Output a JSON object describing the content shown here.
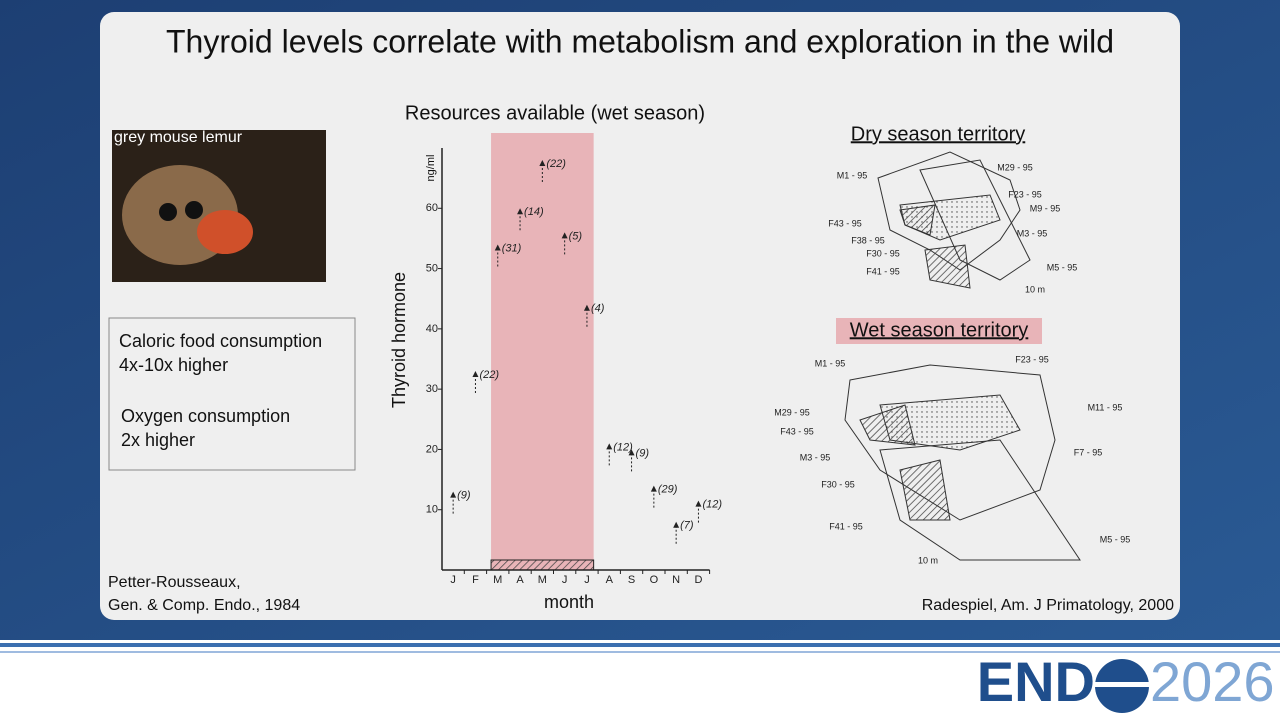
{
  "slide": {
    "title": "Thyroid levels correlate with metabolism and exploration in the wild",
    "photo_caption": "grey mouse lemur",
    "box_lines": [
      "Caloric food consumption",
      "4x-10x higher",
      "Oxygen consumption",
      "2x higher"
    ],
    "citation_left": [
      "Petter-Rousseaux,",
      "Gen. & Comp. Endo., 1984"
    ],
    "citation_right": "Radespiel, Am. J Primatology, 2000"
  },
  "dry_map": {
    "title": "Dry season territory",
    "labels": [
      "M1 - 95",
      "M29 - 95",
      "F23 - 95",
      "M9 - 95",
      "F43 - 95",
      "F38 - 95",
      "M3 - 95",
      "F30 - 95",
      "M5 - 95",
      "F41 - 95",
      "10 m"
    ]
  },
  "wet_map": {
    "title": "Wet season territory",
    "labels": [
      "M1 - 95",
      "F23 - 95",
      "M11 - 95",
      "M29 - 95",
      "F43 - 95",
      "F7 - 95",
      "M3 - 95",
      "F30 - 95",
      "F41 - 95",
      "M5 - 95",
      "10 m"
    ]
  },
  "logo": {
    "left": "END",
    "right": "2026"
  },
  "chart_data": {
    "type": "arrow",
    "title": "Resources available (wet season)",
    "y_label": "Thyroid hormone",
    "y_unit": "ng/ml",
    "x_label": "month",
    "categories": [
      "J",
      "F",
      "M",
      "A",
      "M",
      "J",
      "J",
      "A",
      "S",
      "O",
      "N",
      "D"
    ],
    "values": [
      13,
      33,
      54,
      60,
      68,
      56,
      44,
      21,
      20,
      14,
      8,
      11.5
    ],
    "n_labels": [
      "(9)",
      "(22)",
      "(31)",
      "(14)",
      "(22)",
      "(5)",
      "(4)",
      "(12)",
      "(9)",
      "(29)",
      "(7)",
      "(12)"
    ],
    "ylim": [
      0,
      70
    ],
    "yticks": [
      10,
      20,
      30,
      40,
      50,
      60
    ],
    "highlight_range": [
      2,
      6
    ],
    "highlight_color": "#e8b4b8",
    "color": "#222222"
  }
}
